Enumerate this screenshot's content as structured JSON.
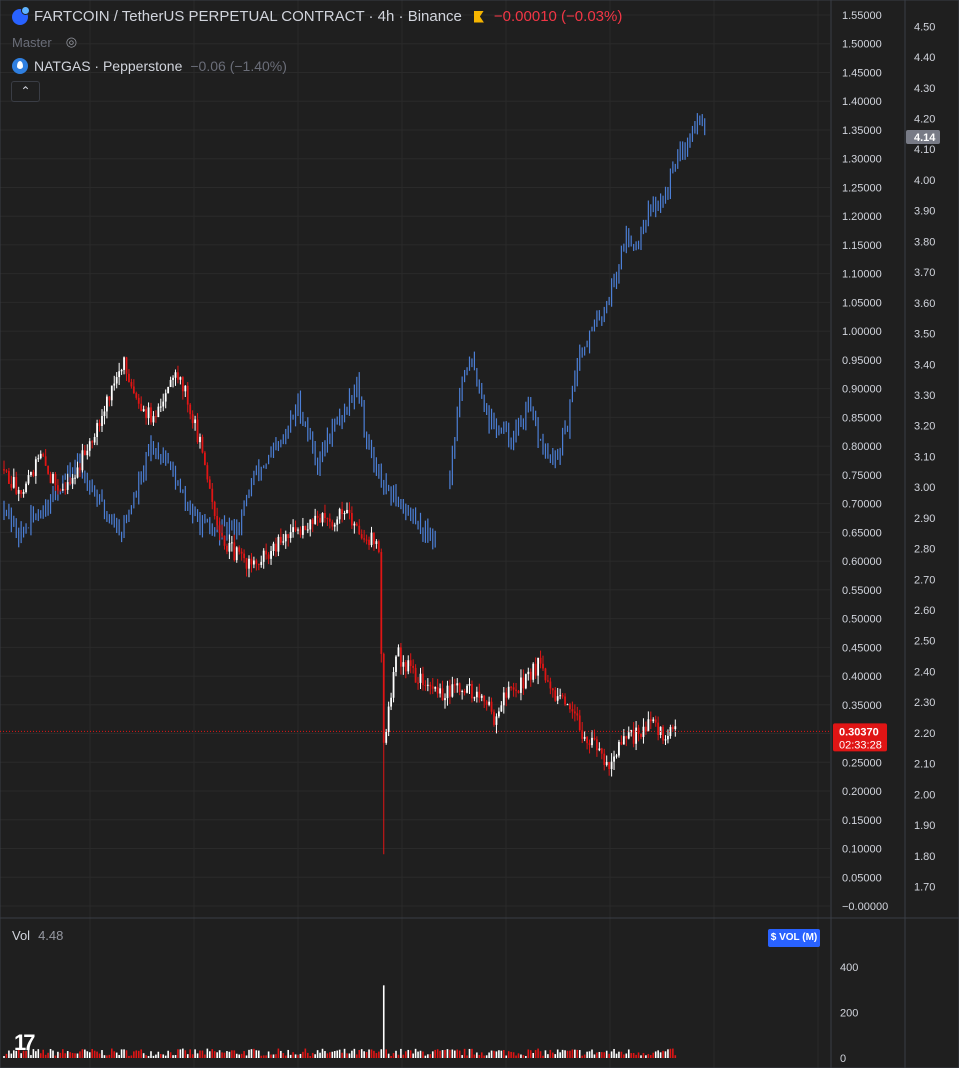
{
  "header": {
    "main_symbol": "FARTCOIN / TetherUS PERPETUAL CONTRACT · 4h · Binance",
    "main_change": "−0.00010 (−0.03%)",
    "master_label": "Master",
    "compare_symbol": "NATGAS · Pepperstone",
    "compare_change": "−0.06 (−1.40%)",
    "collapse_glyph": "⌃"
  },
  "colors": {
    "background": "#1f1f1f",
    "grid": "#2a2a2a",
    "axis_text": "#d1d4dc",
    "candle_up": "#ffffff",
    "candle_down": "#e01515",
    "compare_line": "#4c7fd6",
    "last_price_badge": "#e01515",
    "volume_badge": "#2962ff"
  },
  "chart_data": [
    {
      "type": "candlestick",
      "title": "FARTCOIN / TetherUS PERPETUAL CONTRACT · 4h · Binance",
      "axis": "left-inner",
      "ylim": [
        0.0,
        1.55
      ],
      "y_ticks": [
        "1.55000",
        "1.50000",
        "1.45000",
        "1.40000",
        "1.35000",
        "1.30000",
        "1.25000",
        "1.20000",
        "1.15000",
        "1.10000",
        "1.05000",
        "1.00000",
        "0.95000",
        "0.90000",
        "0.85000",
        "0.80000",
        "0.75000",
        "0.70000",
        "0.65000",
        "0.60000",
        "0.55000",
        "0.50000",
        "0.45000",
        "0.40000",
        "0.35000",
        "0.30000",
        "0.25000",
        "0.20000",
        "0.15000",
        "0.10000",
        "0.05000",
        "−0.00000"
      ],
      "path": [
        [
          0,
          0.76
        ],
        [
          6,
          0.72
        ],
        [
          10,
          0.75
        ],
        [
          15,
          0.78
        ],
        [
          20,
          0.74
        ],
        [
          26,
          0.73
        ],
        [
          31,
          0.77
        ],
        [
          36,
          0.82
        ],
        [
          41,
          0.87
        ],
        [
          46,
          0.92
        ],
        [
          49,
          0.94
        ],
        [
          54,
          0.89
        ],
        [
          58,
          0.86
        ],
        [
          62,
          0.84
        ],
        [
          66,
          0.9
        ],
        [
          70,
          0.94
        ],
        [
          75,
          0.88
        ],
        [
          82,
          0.77
        ],
        [
          86,
          0.69
        ],
        [
          90,
          0.63
        ],
        [
          95,
          0.61
        ],
        [
          99,
          0.6
        ],
        [
          102,
          0.59
        ],
        [
          108,
          0.61
        ],
        [
          115,
          0.64
        ],
        [
          122,
          0.66
        ],
        [
          128,
          0.68
        ],
        [
          133,
          0.66
        ],
        [
          140,
          0.7
        ],
        [
          142,
          0.66
        ],
        [
          146,
          0.65
        ],
        [
          150,
          0.64
        ],
        [
          153,
          0.62
        ],
        [
          155,
          0.27
        ],
        [
          160,
          0.44
        ],
        [
          166,
          0.41
        ],
        [
          173,
          0.38
        ],
        [
          180,
          0.37
        ],
        [
          188,
          0.38
        ],
        [
          195,
          0.36
        ],
        [
          200,
          0.33
        ],
        [
          205,
          0.37
        ],
        [
          212,
          0.39
        ],
        [
          218,
          0.42
        ],
        [
          222,
          0.38
        ],
        [
          230,
          0.34
        ],
        [
          237,
          0.3
        ],
        [
          242,
          0.27
        ],
        [
          247,
          0.25
        ],
        [
          252,
          0.28
        ],
        [
          258,
          0.3
        ],
        [
          263,
          0.32
        ],
        [
          268,
          0.3
        ],
        [
          274,
          0.3
        ]
      ],
      "last_price": "0.30370",
      "countdown": "02:33:28",
      "wick_low": 0.09
    },
    {
      "type": "line",
      "series_name": "NATGAS · Pepperstone",
      "axis": "right",
      "ylim": [
        1.63,
        4.55
      ],
      "y_ticks": [
        "4.50",
        "4.40",
        "4.30",
        "4.20",
        "4.10",
        "4.00",
        "3.90",
        "3.80",
        "3.70",
        "3.60",
        "3.50",
        "3.40",
        "3.30",
        "3.20",
        "3.10",
        "3.00",
        "2.90",
        "2.80",
        "2.70",
        "2.60",
        "2.50",
        "2.40",
        "2.30",
        "2.20",
        "2.10",
        "2.00",
        "1.90",
        "1.80",
        "1.70"
      ],
      "path": [
        [
          0,
          2.94
        ],
        [
          6,
          2.84
        ],
        [
          12,
          2.9
        ],
        [
          18,
          2.95
        ],
        [
          24,
          3.02
        ],
        [
          30,
          3.07
        ],
        [
          36,
          3.0
        ],
        [
          42,
          2.91
        ],
        [
          48,
          2.86
        ],
        [
          54,
          2.98
        ],
        [
          60,
          3.13
        ],
        [
          66,
          3.1
        ],
        [
          72,
          2.98
        ],
        [
          78,
          2.9
        ],
        [
          84,
          2.86
        ],
        [
          90,
          2.86
        ],
        [
          96,
          2.88
        ],
        [
          102,
          3.04
        ],
        [
          108,
          3.09
        ],
        [
          114,
          3.15
        ],
        [
          120,
          3.27
        ],
        [
          124,
          3.18
        ],
        [
          128,
          3.08
        ],
        [
          134,
          3.19
        ],
        [
          140,
          3.26
        ],
        [
          144,
          3.35
        ],
        [
          148,
          3.15
        ],
        [
          152,
          3.05
        ],
        [
          156,
          2.98
        ],
        [
          160,
          2.96
        ],
        [
          164,
          2.93
        ],
        [
          170,
          2.87
        ],
        [
          176,
          2.84
        ],
        [
          178,
          2.88
        ],
        [
          182,
          3.05
        ],
        [
          186,
          3.3
        ],
        [
          190,
          3.42
        ],
        [
          194,
          3.33
        ],
        [
          198,
          3.22
        ],
        [
          203,
          3.18
        ],
        [
          208,
          3.16
        ],
        [
          214,
          3.26
        ],
        [
          220,
          3.12
        ],
        [
          225,
          3.08
        ],
        [
          230,
          3.2
        ],
        [
          234,
          3.42
        ],
        [
          238,
          3.48
        ],
        [
          242,
          3.54
        ],
        [
          246,
          3.6
        ],
        [
          250,
          3.7
        ],
        [
          254,
          3.82
        ],
        [
          258,
          3.79
        ],
        [
          262,
          3.88
        ],
        [
          266,
          3.92
        ],
        [
          270,
          3.95
        ],
        [
          274,
          4.07
        ],
        [
          278,
          4.12
        ],
        [
          282,
          4.18
        ],
        [
          286,
          4.2
        ]
      ],
      "last_value": "4.14"
    },
    {
      "type": "bar",
      "title": "Vol",
      "value_label": "4.48",
      "unit_badge": "$ VOL (M)",
      "ylim": [
        0,
        480
      ],
      "y_ticks": [
        "400",
        "200",
        "0"
      ],
      "baseline": 22,
      "spike_index": 155,
      "spike_value": 320
    }
  ]
}
